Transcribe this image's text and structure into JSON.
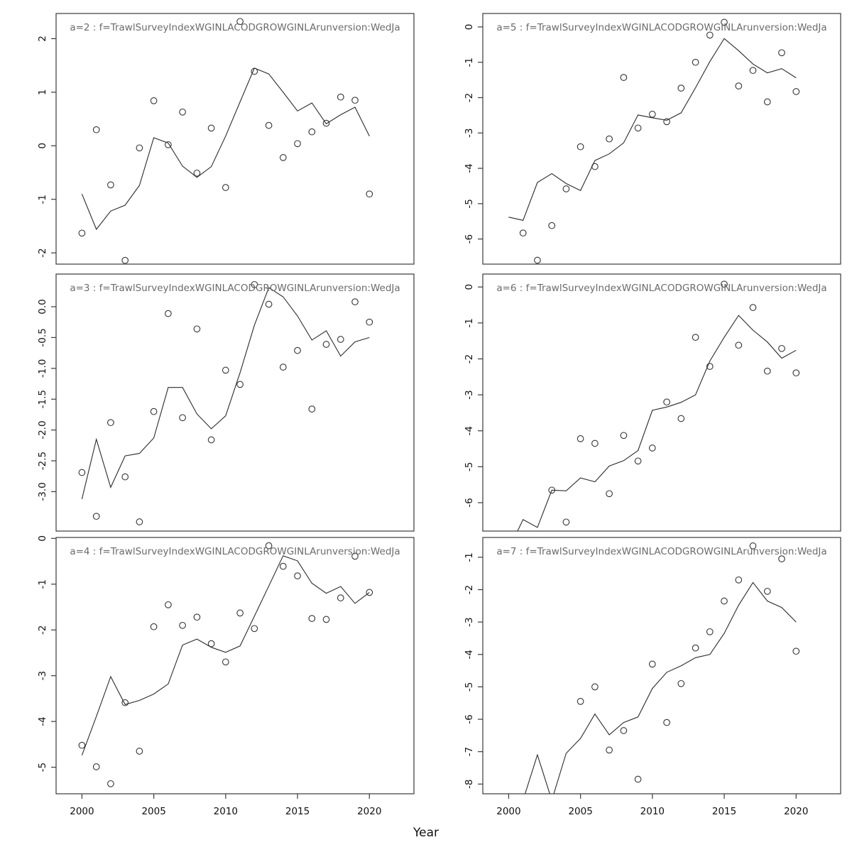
{
  "figure": {
    "xlabel": "Year",
    "bg_color": "#ffffff",
    "title_color": "#6b6b6b",
    "tick_label_color": "#111111",
    "box_color": "#3a3a3a",
    "line_color": "#2b2b2b",
    "point_color": "#333333"
  },
  "chart_data": [
    {
      "type": "line+scatter",
      "id": "a2",
      "row": 0,
      "col": 0,
      "title": "a=2 : f=TrawlSurveyIndexWGINLACODGROWGINLArunversion:WedJa",
      "x": [
        2000,
        2001,
        2002,
        2003,
        2004,
        2005,
        2006,
        2007,
        2008,
        2009,
        2010,
        2011,
        2012,
        2013,
        2014,
        2015,
        2016,
        2017,
        2018,
        2019,
        2020
      ],
      "series": [
        {
          "name": "observed-points",
          "values": [
            -1.63,
            0.3,
            -0.73,
            -2.14,
            -0.04,
            0.84,
            0.02,
            0.63,
            -0.51,
            0.33,
            -0.78,
            2.32,
            1.39,
            0.38,
            -0.22,
            0.04,
            0.26,
            0.42,
            0.91,
            0.85,
            -0.9
          ]
        },
        {
          "name": "fitted-line",
          "values": [
            -0.9,
            -1.56,
            -1.22,
            -1.11,
            -0.74,
            0.15,
            0.05,
            -0.38,
            -0.59,
            -0.39,
            0.18,
            0.82,
            1.45,
            1.34,
            1.0,
            0.65,
            0.8,
            0.41,
            0.58,
            0.72,
            0.18
          ]
        }
      ],
      "xlim": [
        1998.2,
        2023.1
      ],
      "ylim": [
        -2.21,
        2.47
      ],
      "xticks": {
        "values": [
          2000,
          2005,
          2010,
          2015,
          2020
        ],
        "labels": [
          "2000",
          "2005",
          "2010",
          "2015",
          "2020"
        ],
        "show": false
      },
      "yticks": {
        "values": [
          2,
          1,
          0,
          -1,
          -2
        ],
        "labels": [
          "2",
          "1",
          "0",
          "-1",
          "-2"
        ]
      }
    },
    {
      "type": "line+scatter",
      "id": "a5",
      "row": 0,
      "col": 1,
      "title": "a=5 : f=TrawlSurveyIndexWGINLACODGROWGINLArunversion:WedJa",
      "x": [
        2000,
        2001,
        2002,
        2003,
        2004,
        2005,
        2006,
        2007,
        2008,
        2009,
        2010,
        2011,
        2012,
        2013,
        2014,
        2015,
        2016,
        2017,
        2018,
        2019,
        2020
      ],
      "series": [
        {
          "name": "observed-points",
          "values": [
            null,
            -5.83,
            -6.6,
            -5.62,
            -4.58,
            -3.39,
            -3.95,
            -3.17,
            -1.43,
            -2.86,
            -2.47,
            -2.68,
            -1.73,
            -1.0,
            -0.23,
            0.13,
            -1.67,
            -1.23,
            -2.12,
            -0.73,
            -1.83
          ]
        },
        {
          "name": "fitted-line",
          "values": [
            -5.38,
            -5.47,
            -4.4,
            -4.15,
            -4.43,
            -4.63,
            -3.78,
            -3.59,
            -3.28,
            -2.49,
            -2.57,
            -2.64,
            -2.43,
            -1.72,
            -0.98,
            -0.33,
            -0.67,
            -1.05,
            -1.3,
            -1.18,
            -1.44
          ]
        }
      ],
      "xlim": [
        1998.2,
        2023.1
      ],
      "ylim": [
        -6.71,
        0.38
      ],
      "xticks": {
        "values": [
          2000,
          2005,
          2010,
          2015,
          2020
        ],
        "labels": [
          "2000",
          "2005",
          "2010",
          "2015",
          "2020"
        ],
        "show": false
      },
      "yticks": {
        "values": [
          0,
          -1,
          -2,
          -3,
          -4,
          -5,
          -6
        ],
        "labels": [
          "0",
          "-1",
          "-2",
          "-3",
          "-4",
          "-5",
          "-6"
        ]
      }
    },
    {
      "type": "line+scatter",
      "id": "a3",
      "row": 1,
      "col": 0,
      "title": "a=3 : f=TrawlSurveyIndexWGINLACODGROWGINLArunversion:WedJa",
      "x": [
        2000,
        2001,
        2002,
        2003,
        2004,
        2005,
        2006,
        2007,
        2008,
        2009,
        2010,
        2011,
        2012,
        2013,
        2014,
        2015,
        2016,
        2017,
        2018,
        2019,
        2020
      ],
      "series": [
        {
          "name": "observed-points",
          "values": [
            -2.69,
            -3.4,
            -1.88,
            -2.76,
            -3.49,
            -1.7,
            -0.11,
            -1.8,
            -0.36,
            -2.16,
            -1.03,
            -1.26,
            0.36,
            0.04,
            -0.98,
            -0.71,
            -1.66,
            -0.61,
            -0.53,
            0.08,
            -0.25
          ]
        },
        {
          "name": "fitted-line",
          "values": [
            -3.12,
            -2.15,
            -2.93,
            -2.42,
            -2.38,
            -2.13,
            -1.31,
            -1.31,
            -1.74,
            -1.98,
            -1.77,
            -1.07,
            -0.3,
            0.31,
            0.16,
            -0.15,
            -0.54,
            -0.39,
            -0.8,
            -0.57,
            -0.5
          ]
        }
      ],
      "xlim": [
        1998.2,
        2023.1
      ],
      "ylim": [
        -3.64,
        0.53
      ],
      "xticks": {
        "values": [
          2000,
          2005,
          2010,
          2015,
          2020
        ],
        "labels": [
          "2000",
          "2005",
          "2010",
          "2015",
          "2020"
        ],
        "show": false
      },
      "yticks": {
        "values": [
          0,
          -0.5,
          -1,
          -1.5,
          -2,
          -2.5,
          -3
        ],
        "labels": [
          "0.0",
          "-0.5",
          "-1.0",
          "-1.5",
          "-2.0",
          "-2.5",
          "-3.0"
        ]
      }
    },
    {
      "type": "line+scatter",
      "id": "a6",
      "row": 1,
      "col": 1,
      "title": "a=6 : f=TrawlSurveyIndexWGINLACODGROWGINLArunversion:WedJa",
      "x": [
        2000,
        2001,
        2002,
        2003,
        2004,
        2005,
        2006,
        2007,
        2008,
        2009,
        2010,
        2011,
        2012,
        2013,
        2014,
        2015,
        2016,
        2017,
        2018,
        2019,
        2020
      ],
      "series": [
        {
          "name": "observed-points",
          "values": [
            null,
            null,
            null,
            -5.65,
            -6.54,
            -4.22,
            -4.35,
            -5.75,
            -4.13,
            -4.84,
            -4.48,
            -3.2,
            -3.66,
            -1.4,
            -2.21,
            0.08,
            -1.62,
            -0.57,
            -2.34,
            -1.71,
            -2.39
          ]
        },
        {
          "name": "fitted-line",
          "values": [
            -7.3,
            -6.47,
            -6.69,
            -5.65,
            -5.67,
            -5.31,
            -5.42,
            -4.98,
            -4.83,
            -4.55,
            -3.43,
            -3.34,
            -3.21,
            -3.0,
            -2.06,
            -1.4,
            -0.79,
            -1.2,
            -1.53,
            -1.98,
            -1.76
          ]
        }
      ],
      "xlim": [
        1998.2,
        2023.1
      ],
      "ylim": [
        -6.79,
        0.36
      ],
      "xticks": {
        "values": [
          2000,
          2005,
          2010,
          2015,
          2020
        ],
        "labels": [
          "2000",
          "2005",
          "2010",
          "2015",
          "2020"
        ],
        "show": false
      },
      "yticks": {
        "values": [
          0,
          -1,
          -2,
          -3,
          -4,
          -5,
          -6
        ],
        "labels": [
          "0",
          "-1",
          "-2",
          "-3",
          "-4",
          "-5",
          "-6"
        ]
      }
    },
    {
      "type": "line+scatter",
      "id": "a4",
      "row": 2,
      "col": 0,
      "title": "a=4 : f=TrawlSurveyIndexWGINLACODGROWGINLArunversion:WedJa",
      "x": [
        2000,
        2001,
        2002,
        2003,
        2004,
        2005,
        2006,
        2007,
        2008,
        2009,
        2010,
        2011,
        2012,
        2013,
        2014,
        2015,
        2016,
        2017,
        2018,
        2019,
        2020
      ],
      "series": [
        {
          "name": "observed-points",
          "values": [
            -4.52,
            -4.99,
            -5.36,
            -3.59,
            -4.65,
            -1.93,
            -1.45,
            -1.9,
            -1.72,
            -2.3,
            -2.7,
            -1.63,
            -1.97,
            -0.16,
            -0.61,
            -0.82,
            -1.75,
            -1.77,
            -1.3,
            -0.39,
            -1.18
          ]
        },
        {
          "name": "fitted-line",
          "values": [
            -4.74,
            -3.89,
            -3.02,
            -3.63,
            -3.54,
            -3.4,
            -3.18,
            -2.33,
            -2.2,
            -2.38,
            -2.49,
            -2.35,
            -1.7,
            -1.04,
            -0.38,
            -0.49,
            -0.98,
            -1.2,
            -1.05,
            -1.42,
            -1.18
          ]
        }
      ],
      "xlim": [
        1998.2,
        2023.1
      ],
      "ylim": [
        -5.58,
        0.02
      ],
      "xticks": {
        "values": [
          2000,
          2005,
          2010,
          2015,
          2020
        ],
        "labels": [
          "2000",
          "2005",
          "2010",
          "2015",
          "2020"
        ],
        "show": true
      },
      "yticks": {
        "values": [
          0,
          -1,
          -2,
          -3,
          -4,
          -5
        ],
        "labels": [
          "0",
          "-1",
          "-2",
          "-3",
          "-4",
          "-5"
        ]
      }
    },
    {
      "type": "line+scatter",
      "id": "a7",
      "row": 2,
      "col": 1,
      "title": "a=7 : f=TrawlSurveyIndexWGINLACODGROWGINLArunversion:WedJa",
      "x": [
        2000,
        2001,
        2002,
        2003,
        2004,
        2005,
        2006,
        2007,
        2008,
        2009,
        2010,
        2011,
        2012,
        2013,
        2014,
        2015,
        2016,
        2017,
        2018,
        2019,
        2020
      ],
      "series": [
        {
          "name": "observed-points",
          "values": [
            null,
            null,
            null,
            null,
            null,
            -5.45,
            -5.0,
            -6.95,
            -6.35,
            -7.85,
            -4.3,
            -6.1,
            -4.9,
            -3.8,
            -3.3,
            -2.35,
            -1.7,
            -0.65,
            -2.05,
            -1.05,
            -3.9
          ]
        },
        {
          "name": "fitted-line",
          "values": [
            -8.8,
            -8.5,
            -7.1,
            -8.5,
            -7.05,
            -6.59,
            -5.84,
            -6.48,
            -6.1,
            -5.93,
            -5.05,
            -4.55,
            -4.35,
            -4.1,
            -4.0,
            -3.35,
            -2.48,
            -1.78,
            -2.35,
            -2.55,
            -3.0
          ]
        }
      ],
      "xlim": [
        1998.2,
        2023.1
      ],
      "ylim": [
        -8.3,
        -0.39
      ],
      "xticks": {
        "values": [
          2000,
          2005,
          2010,
          2015,
          2020
        ],
        "labels": [
          "2000",
          "2005",
          "2010",
          "2015",
          "2020"
        ],
        "show": true
      },
      "yticks": {
        "values": [
          -1,
          -2,
          -3,
          -4,
          -5,
          -6,
          -7,
          -8
        ],
        "labels": [
          "-1",
          "-2",
          "-3",
          "-4",
          "-5",
          "-6",
          "-7",
          "-8"
        ]
      }
    }
  ]
}
